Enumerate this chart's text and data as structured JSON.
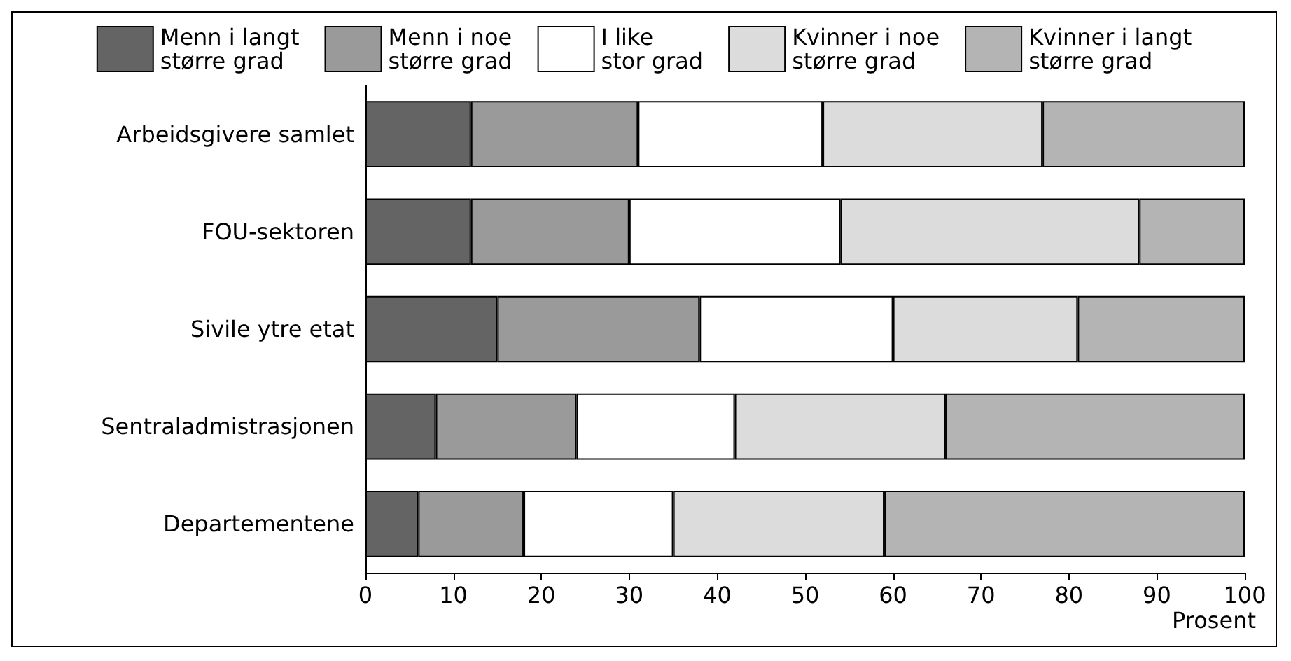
{
  "chart_data": {
    "type": "bar",
    "orientation": "horizontal",
    "stacked": true,
    "xlabel": "Prosent",
    "categories": [
      "Arbeidsgivere samlet",
      "FOU-sektoren",
      "Sivile ytre etat",
      "Sentraladmistrasjonen",
      "Departementene"
    ],
    "series": [
      {
        "name": "Menn i langt\nstørre grad",
        "color": "#646464",
        "values": [
          12,
          12,
          15,
          8,
          6
        ]
      },
      {
        "name": "Menn i noe\nstørre grad",
        "color": "#9a9a9a",
        "values": [
          19,
          18,
          23,
          16,
          12
        ]
      },
      {
        "name": "I like\nstor grad",
        "color": "#ffffff",
        "values": [
          21,
          24,
          22,
          18,
          17
        ]
      },
      {
        "name": "Kvinner i noe\nstørre grad",
        "color": "#dcdcdc",
        "values": [
          25,
          34,
          21,
          24,
          24
        ]
      },
      {
        "name": "Kvinner i langt\nstørre grad",
        "color": "#b4b4b4",
        "values": [
          23,
          12,
          19,
          34,
          41
        ]
      }
    ],
    "xlim": [
      0,
      100
    ],
    "xticks": [
      0,
      10,
      20,
      30,
      40,
      50,
      60,
      70,
      80,
      90,
      100
    ],
    "grid": false,
    "legend": "top"
  }
}
